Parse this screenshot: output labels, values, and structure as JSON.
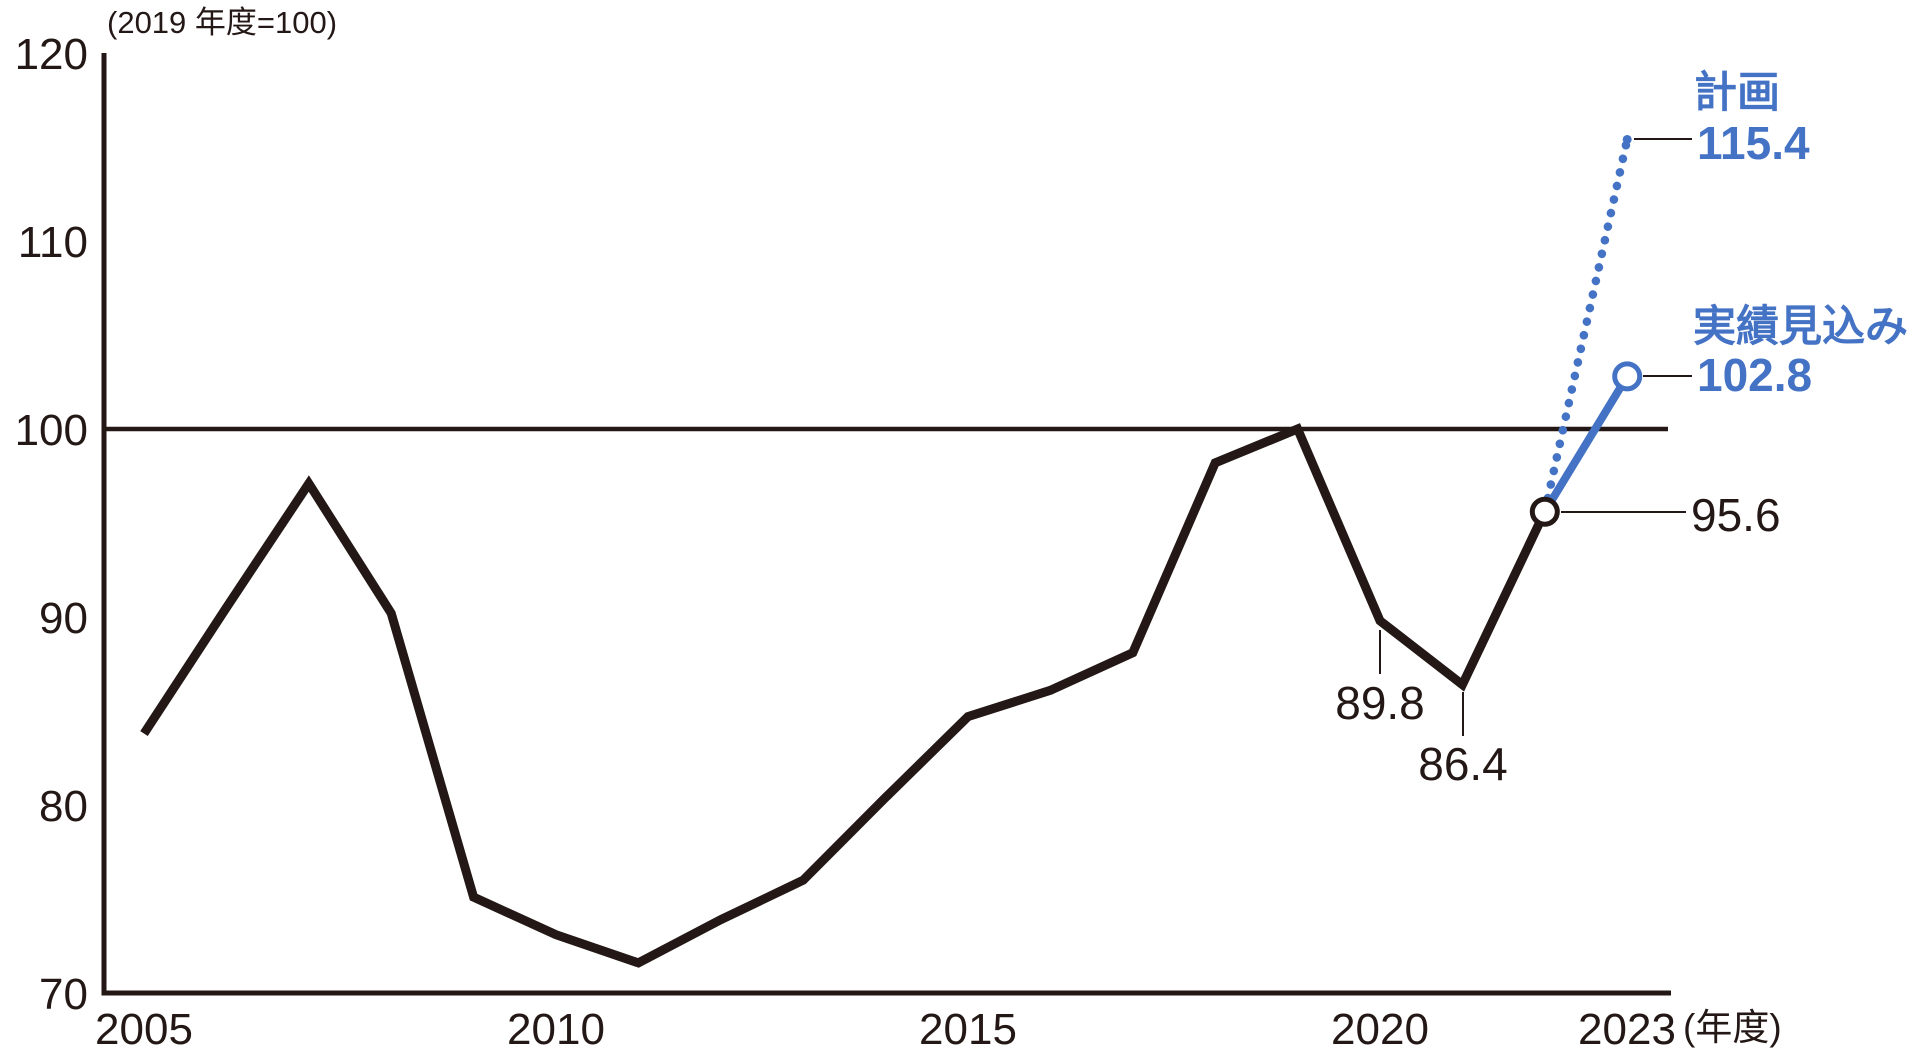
{
  "chart_data": {
    "type": "line",
    "title": "",
    "unit_note": "(2019 年度=100)",
    "x_axis_unit": "(年度)",
    "index_base": "2019年度=100",
    "ylim": [
      70,
      120
    ],
    "grid": false,
    "reference_line_y": 100,
    "ytick_values": [
      120,
      110,
      100,
      90,
      80,
      70
    ],
    "ytick_labels": [
      "120",
      "110",
      "100",
      "90",
      "80",
      "70"
    ],
    "xtick_years": [
      2005,
      2010,
      2015,
      2020,
      2023
    ],
    "xtick_labels": [
      "2005",
      "2010",
      "2015",
      "2020",
      "2023"
    ],
    "series": [
      {
        "name": "実績",
        "color": "#231815",
        "style": "solid",
        "width": 9,
        "x": [
          2005,
          2006,
          2007,
          2008,
          2009,
          2010,
          2011,
          2012,
          2013,
          2014,
          2015,
          2016,
          2017,
          2018,
          2019,
          2020,
          2021,
          2022
        ],
        "values": [
          83.8,
          90.5,
          97.1,
          90.2,
          75.1,
          73.1,
          71.6,
          73.9,
          76.0,
          80.4,
          84.7,
          86.1,
          88.1,
          98.2,
          100.0,
          89.8,
          86.4,
          95.6
        ]
      },
      {
        "name": "実績見込み",
        "color": "#4472c4",
        "style": "solid",
        "width": 8,
        "x": [
          2022,
          2023
        ],
        "values": [
          95.6,
          102.8
        ]
      },
      {
        "name": "計画",
        "color": "#4472c4",
        "style": "dotted",
        "width": 8.5,
        "x": [
          2022,
          2023
        ],
        "values": [
          95.6,
          115.4
        ]
      }
    ],
    "markers": [
      {
        "year": 2022,
        "value": 95.6,
        "type": "open-circle",
        "color": "#231815"
      },
      {
        "year": 2023,
        "value": 102.8,
        "type": "open-circle",
        "color": "#4472c4"
      },
      {
        "year": 2023,
        "value": 115.4,
        "type": "dot",
        "color": "#4472c4"
      }
    ],
    "labels": {
      "plan_name": "計画",
      "plan_value": "115.4",
      "forecast_name": "実績見込み",
      "forecast_value": "102.8",
      "value_2022": "95.6",
      "value_2020": "89.8",
      "value_2021": "86.4"
    },
    "legend_position": "right-annotations",
    "colors": {
      "line_black": "#231815",
      "accent_blue": "#4472c4"
    }
  }
}
